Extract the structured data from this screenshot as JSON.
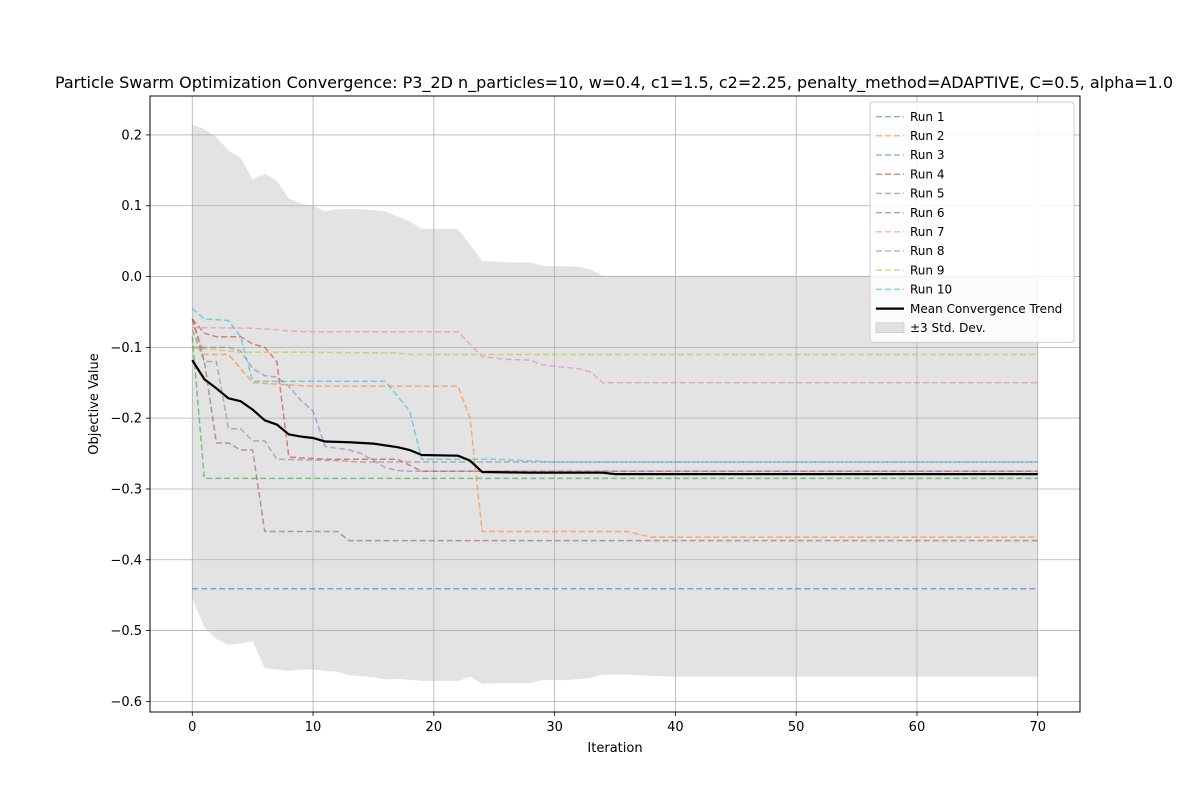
{
  "chart_data": {
    "type": "line",
    "title": "Particle Swarm Optimization Convergence: P3_2D n_particles=10, w=0.4, c1=1.5, c2=2.25, penalty_method=ADAPTIVE, C=0.5, alpha=1.0",
    "xlabel": "Iteration",
    "ylabel": "Objective Value",
    "xlim": [
      -3.5,
      73.5
    ],
    "ylim": [
      -0.615,
      0.255
    ],
    "xticks": [
      0,
      10,
      20,
      30,
      40,
      50,
      60,
      70
    ],
    "yticks": [
      -0.6,
      -0.5,
      -0.4,
      -0.3,
      -0.2,
      -0.1,
      0.0,
      0.1,
      0.2
    ],
    "xtick_labels": [
      "0",
      "10",
      "20",
      "30",
      "40",
      "50",
      "60",
      "70"
    ],
    "ytick_labels": [
      "−0.6",
      "−0.5",
      "−0.4",
      "−0.3",
      "−0.2",
      "−0.1",
      "0.0",
      "0.1",
      "0.2"
    ],
    "grid": true,
    "legend_position": "top-right",
    "series": [
      {
        "name": "Run 1",
        "color": "#1f77b4",
        "style": "dashed",
        "points": [
          [
            0,
            -0.441
          ],
          [
            70,
            -0.441
          ]
        ]
      },
      {
        "name": "Run 2",
        "color": "#ff7f0e",
        "style": "dashed",
        "points": [
          [
            0,
            -0.06
          ],
          [
            1,
            -0.11
          ],
          [
            3,
            -0.11
          ],
          [
            5,
            -0.15
          ],
          [
            10,
            -0.155
          ],
          [
            22,
            -0.155
          ],
          [
            23,
            -0.2
          ],
          [
            24,
            -0.36
          ],
          [
            36,
            -0.36
          ],
          [
            38,
            -0.368
          ],
          [
            70,
            -0.368
          ]
        ]
      },
      {
        "name": "Run 3",
        "color": "#2ca02c",
        "style": "dashed",
        "points": [
          [
            0,
            -0.085
          ],
          [
            1,
            -0.285
          ],
          [
            70,
            -0.285
          ]
        ]
      },
      {
        "name": "Run 4",
        "color": "#d62728",
        "style": "dashed",
        "points": [
          [
            0,
            -0.06
          ],
          [
            1,
            -0.08
          ],
          [
            2,
            -0.085
          ],
          [
            4,
            -0.085
          ],
          [
            5,
            -0.095
          ],
          [
            6,
            -0.1
          ],
          [
            7,
            -0.12
          ],
          [
            8,
            -0.255
          ],
          [
            10,
            -0.257
          ],
          [
            11,
            -0.258
          ],
          [
            17,
            -0.258
          ],
          [
            19,
            -0.275
          ],
          [
            70,
            -0.275
          ]
        ]
      },
      {
        "name": "Run 5",
        "color": "#9467bd",
        "style": "dashed",
        "points": [
          [
            0,
            -0.1
          ],
          [
            3,
            -0.1
          ],
          [
            4,
            -0.105
          ],
          [
            5,
            -0.13
          ],
          [
            6,
            -0.14
          ],
          [
            7,
            -0.142
          ],
          [
            8,
            -0.155
          ],
          [
            9,
            -0.175
          ],
          [
            10,
            -0.19
          ],
          [
            11,
            -0.24
          ],
          [
            13,
            -0.245
          ],
          [
            14,
            -0.25
          ],
          [
            15,
            -0.26
          ],
          [
            16,
            -0.27
          ],
          [
            17,
            -0.274
          ],
          [
            18,
            -0.275
          ],
          [
            70,
            -0.275
          ]
        ]
      },
      {
        "name": "Run 6",
        "color": "#8c564b",
        "style": "dashed",
        "points": [
          [
            0,
            -0.06
          ],
          [
            1,
            -0.12
          ],
          [
            2,
            -0.235
          ],
          [
            3,
            -0.235
          ],
          [
            4,
            -0.245
          ],
          [
            5,
            -0.245
          ],
          [
            6,
            -0.36
          ],
          [
            12,
            -0.36
          ],
          [
            13,
            -0.373
          ],
          [
            70,
            -0.373
          ]
        ]
      },
      {
        "name": "Run 7",
        "color": "#e377c2",
        "style": "dashed",
        "points": [
          [
            0,
            -0.072
          ],
          [
            5,
            -0.073
          ],
          [
            7,
            -0.075
          ],
          [
            8,
            -0.077
          ],
          [
            10,
            -0.078
          ],
          [
            22,
            -0.078
          ],
          [
            24,
            -0.113
          ],
          [
            26,
            -0.117
          ],
          [
            28,
            -0.118
          ],
          [
            29,
            -0.125
          ],
          [
            32,
            -0.13
          ],
          [
            33,
            -0.135
          ],
          [
            34,
            -0.15
          ],
          [
            40,
            -0.15
          ],
          [
            70,
            -0.15
          ]
        ]
      },
      {
        "name": "Run 8",
        "color": "#7f7f7f",
        "style": "dashed",
        "points": [
          [
            0,
            -0.075
          ],
          [
            1,
            -0.12
          ],
          [
            2,
            -0.12
          ],
          [
            3,
            -0.215
          ],
          [
            4,
            -0.215
          ],
          [
            5,
            -0.232
          ],
          [
            6,
            -0.232
          ],
          [
            7,
            -0.258
          ],
          [
            12,
            -0.26
          ],
          [
            14,
            -0.262
          ],
          [
            20,
            -0.262
          ],
          [
            24,
            -0.262
          ],
          [
            70,
            -0.262
          ]
        ]
      },
      {
        "name": "Run 9",
        "color": "#bcbd22",
        "style": "dashed",
        "points": [
          [
            0,
            -0.1
          ],
          [
            3,
            -0.105
          ],
          [
            4,
            -0.107
          ],
          [
            10,
            -0.107
          ],
          [
            17,
            -0.108
          ],
          [
            18,
            -0.11
          ],
          [
            70,
            -0.11
          ]
        ]
      },
      {
        "name": "Run 10",
        "color": "#17becf",
        "style": "dashed",
        "points": [
          [
            0,
            -0.045
          ],
          [
            1,
            -0.06
          ],
          [
            3,
            -0.062
          ],
          [
            4,
            -0.085
          ],
          [
            5,
            -0.148
          ],
          [
            6,
            -0.148
          ],
          [
            10,
            -0.148
          ],
          [
            16,
            -0.148
          ],
          [
            18,
            -0.19
          ],
          [
            19,
            -0.258
          ],
          [
            25,
            -0.258
          ],
          [
            30,
            -0.262
          ],
          [
            70,
            -0.262
          ]
        ]
      },
      {
        "name": "Mean Convergence Trend",
        "color": "#000000",
        "style": "solid",
        "points": [
          [
            0,
            -0.118
          ],
          [
            1,
            -0.145
          ],
          [
            2,
            -0.158
          ],
          [
            3,
            -0.172
          ],
          [
            4,
            -0.176
          ],
          [
            5,
            -0.188
          ],
          [
            6,
            -0.203
          ],
          [
            7,
            -0.209
          ],
          [
            8,
            -0.223
          ],
          [
            9,
            -0.226
          ],
          [
            10,
            -0.228
          ],
          [
            11,
            -0.233
          ],
          [
            13,
            -0.234
          ],
          [
            15,
            -0.236
          ],
          [
            17,
            -0.241
          ],
          [
            18,
            -0.245
          ],
          [
            19,
            -0.252
          ],
          [
            22,
            -0.253
          ],
          [
            23,
            -0.26
          ],
          [
            24,
            -0.276
          ],
          [
            28,
            -0.277
          ],
          [
            34,
            -0.277
          ],
          [
            35,
            -0.279
          ],
          [
            70,
            -0.279
          ]
        ]
      }
    ],
    "band": {
      "name": "±3 Std. Dev.",
      "color": "#c8c8c8",
      "upper": [
        [
          0,
          0.215
        ],
        [
          1,
          0.208
        ],
        [
          2,
          0.197
        ],
        [
          3,
          0.178
        ],
        [
          4,
          0.168
        ],
        [
          5,
          0.137
        ],
        [
          6,
          0.145
        ],
        [
          7,
          0.135
        ],
        [
          8,
          0.11
        ],
        [
          9,
          0.103
        ],
        [
          10,
          0.1
        ],
        [
          11,
          0.092
        ],
        [
          12,
          0.095
        ],
        [
          13,
          0.095
        ],
        [
          14,
          0.095
        ],
        [
          15,
          0.094
        ],
        [
          16,
          0.092
        ],
        [
          17,
          0.085
        ],
        [
          18,
          0.078
        ],
        [
          19,
          0.067
        ],
        [
          22,
          0.067
        ],
        [
          23,
          0.045
        ],
        [
          24,
          0.022
        ],
        [
          26,
          0.02
        ],
        [
          28,
          0.02
        ],
        [
          29,
          0.015
        ],
        [
          32,
          0.014
        ],
        [
          33,
          0.01
        ],
        [
          34,
          0.001
        ],
        [
          40,
          0.001
        ],
        [
          70,
          0.001
        ]
      ],
      "lower": [
        [
          0,
          -0.455
        ],
        [
          1,
          -0.495
        ],
        [
          2,
          -0.512
        ],
        [
          3,
          -0.52
        ],
        [
          4,
          -0.518
        ],
        [
          5,
          -0.515
        ],
        [
          6,
          -0.553
        ],
        [
          8,
          -0.557
        ],
        [
          9,
          -0.555
        ],
        [
          10,
          -0.555
        ],
        [
          11,
          -0.557
        ],
        [
          12,
          -0.558
        ],
        [
          13,
          -0.563
        ],
        [
          15,
          -0.566
        ],
        [
          16,
          -0.569
        ],
        [
          17,
          -0.568
        ],
        [
          19,
          -0.571
        ],
        [
          22,
          -0.571
        ],
        [
          23,
          -0.565
        ],
        [
          24,
          -0.575
        ],
        [
          26,
          -0.574
        ],
        [
          28,
          -0.574
        ],
        [
          29,
          -0.57
        ],
        [
          31,
          -0.57
        ],
        [
          33,
          -0.567
        ],
        [
          34,
          -0.562
        ],
        [
          36,
          -0.562
        ],
        [
          38,
          -0.564
        ],
        [
          40,
          -0.565
        ],
        [
          70,
          -0.565
        ]
      ]
    }
  }
}
